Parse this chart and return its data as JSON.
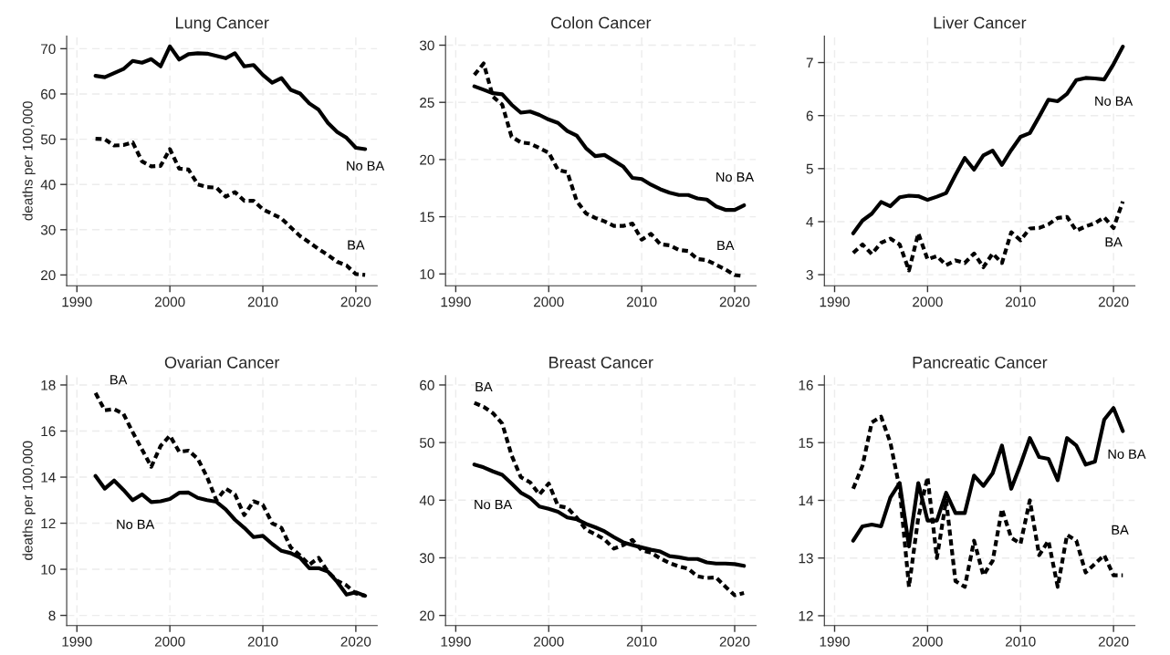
{
  "chart_data": [
    {
      "type": "line",
      "title": "Lung Cancer",
      "ylabel": "deaths per 100,000",
      "xlim": [
        1988.9,
        2022.3
      ],
      "xticks": [
        1990,
        2000,
        2010,
        2020
      ],
      "ylim": [
        17.6,
        72.8
      ],
      "yticks": [
        20,
        30,
        40,
        50,
        60,
        70
      ],
      "grid": true,
      "legend": false,
      "x": [
        1992,
        1993,
        1994,
        1995,
        1996,
        1997,
        1998,
        1999,
        2000,
        2001,
        2002,
        2003,
        2004,
        2005,
        2006,
        2007,
        2008,
        2009,
        2010,
        2011,
        2012,
        2013,
        2014,
        2015,
        2016,
        2017,
        2018,
        2019,
        2020,
        2021
      ],
      "series": [
        {
          "name": "No BA",
          "color": "#000000",
          "line_style": "solid",
          "values": [
            64.0,
            63.7,
            64.6,
            65.5,
            67.3,
            66.9,
            67.7,
            66.1,
            70.5,
            67.6,
            68.8,
            69.0,
            68.9,
            68.4,
            67.9,
            69.0,
            66.1,
            66.4,
            64.2,
            62.5,
            63.5,
            60.9,
            60.1,
            57.9,
            56.5,
            53.6,
            51.6,
            50.3,
            48.1,
            47.8
          ]
        },
        {
          "name": "BA",
          "color": "#000000",
          "line_style": "dashed",
          "values": [
            50.1,
            50.0,
            48.6,
            48.7,
            49.3,
            45.1,
            44.0,
            44.1,
            47.8,
            43.5,
            43.3,
            40.0,
            39.4,
            39.3,
            37.3,
            38.3,
            36.4,
            36.4,
            34.5,
            33.5,
            32.5,
            30.5,
            28.6,
            27.2,
            25.7,
            24.4,
            22.9,
            22.1,
            20.2,
            20.0
          ]
        }
      ]
    },
    {
      "type": "line",
      "title": "Colon Cancer",
      "xlim": [
        1988.9,
        2022.3
      ],
      "xticks": [
        1990,
        2000,
        2010,
        2020
      ],
      "ylim": [
        8.96,
        30.8
      ],
      "yticks": [
        10,
        15,
        20,
        25,
        30
      ],
      "grid": true,
      "legend": false,
      "x": [
        1992,
        1993,
        1994,
        1995,
        1996,
        1997,
        1998,
        1999,
        2000,
        2001,
        2002,
        2003,
        2004,
        2005,
        2006,
        2007,
        2008,
        2009,
        2010,
        2011,
        2012,
        2013,
        2014,
        2015,
        2016,
        2017,
        2018,
        2019,
        2020,
        2021
      ],
      "series": [
        {
          "name": "No BA",
          "color": "#000000",
          "line_style": "solid",
          "values": [
            26.4,
            26.1,
            25.8,
            25.7,
            24.8,
            24.1,
            24.2,
            23.9,
            23.5,
            23.2,
            22.5,
            22.1,
            21.0,
            20.3,
            20.4,
            19.9,
            19.4,
            18.4,
            18.3,
            17.8,
            17.4,
            17.1,
            16.9,
            16.9,
            16.6,
            16.5,
            15.9,
            15.6,
            15.6,
            16.0
          ]
        },
        {
          "name": "BA",
          "color": "#000000",
          "line_style": "dashed",
          "values": [
            27.4,
            28.4,
            25.5,
            24.8,
            22.0,
            21.5,
            21.4,
            21.0,
            20.6,
            19.1,
            18.9,
            16.4,
            15.3,
            14.9,
            14.6,
            14.2,
            14.2,
            14.4,
            13.0,
            13.5,
            12.6,
            12.5,
            12.1,
            12.0,
            11.3,
            11.2,
            10.8,
            10.4,
            9.9,
            9.8
          ]
        }
      ]
    },
    {
      "type": "line",
      "title": "Liver Cancer",
      "xlim": [
        1988.9,
        2022.3
      ],
      "xticks": [
        1990,
        2000,
        2010,
        2020
      ],
      "ylim": [
        2.79,
        7.5
      ],
      "yticks": [
        3,
        4,
        5,
        6,
        7
      ],
      "grid": true,
      "legend": false,
      "x": [
        1992,
        1993,
        1994,
        1995,
        1996,
        1997,
        1998,
        1999,
        2000,
        2001,
        2002,
        2003,
        2004,
        2005,
        2006,
        2007,
        2008,
        2009,
        2010,
        2011,
        2012,
        2013,
        2014,
        2015,
        2016,
        2017,
        2018,
        2019,
        2020,
        2021
      ],
      "series": [
        {
          "name": "No BA",
          "color": "#000000",
          "line_style": "solid",
          "values": [
            3.78,
            4.02,
            4.15,
            4.37,
            4.29,
            4.46,
            4.49,
            4.48,
            4.41,
            4.47,
            4.54,
            4.88,
            5.2,
            4.98,
            5.25,
            5.34,
            5.07,
            5.35,
            5.6,
            5.67,
            5.98,
            6.3,
            6.27,
            6.41,
            6.67,
            6.71,
            6.7,
            6.68,
            6.97,
            7.3
          ]
        },
        {
          "name": "BA",
          "color": "#000000",
          "line_style": "dashed",
          "values": [
            3.41,
            3.57,
            3.39,
            3.6,
            3.68,
            3.57,
            3.08,
            3.78,
            3.29,
            3.35,
            3.18,
            3.27,
            3.22,
            3.4,
            3.14,
            3.4,
            3.22,
            3.8,
            3.65,
            3.87,
            3.88,
            3.95,
            4.07,
            4.09,
            3.83,
            3.91,
            3.97,
            4.08,
            3.88,
            4.38
          ]
        }
      ]
    },
    {
      "type": "line",
      "title": "Ovarian Cancer",
      "ylabel": "deaths per 100,000",
      "xlim": [
        1988.9,
        2022.3
      ],
      "xticks": [
        1990,
        2000,
        2010,
        2020
      ],
      "ylim": [
        7.56,
        18.4
      ],
      "yticks": [
        8,
        10,
        12,
        14,
        16,
        18
      ],
      "grid": true,
      "legend": false,
      "x": [
        1992,
        1993,
        1994,
        1995,
        1996,
        1997,
        1998,
        1999,
        2000,
        2001,
        2002,
        2003,
        2004,
        2005,
        2006,
        2007,
        2008,
        2009,
        2010,
        2011,
        2012,
        2013,
        2014,
        2015,
        2016,
        2017,
        2018,
        2019,
        2020,
        2021
      ],
      "series": [
        {
          "name": "No BA",
          "color": "#000000",
          "line_style": "solid",
          "values": [
            14.05,
            13.5,
            13.85,
            13.45,
            13.0,
            13.25,
            12.92,
            12.95,
            13.05,
            13.32,
            13.33,
            13.1,
            13.0,
            12.93,
            12.6,
            12.15,
            11.8,
            11.4,
            11.45,
            11.1,
            10.8,
            10.7,
            10.5,
            10.05,
            10.05,
            9.9,
            9.45,
            8.9,
            9.0,
            8.85
          ]
        },
        {
          "name": "BA",
          "color": "#000000",
          "line_style": "dashed",
          "values": [
            17.65,
            16.9,
            16.95,
            16.75,
            15.95,
            15.2,
            14.45,
            15.35,
            15.8,
            15.1,
            15.15,
            14.8,
            14.0,
            13.0,
            13.5,
            13.25,
            12.35,
            12.95,
            12.8,
            12.0,
            11.8,
            10.95,
            10.6,
            10.2,
            10.5,
            9.9,
            9.5,
            9.3,
            8.95,
            8.85
          ]
        }
      ]
    },
    {
      "type": "line",
      "title": "Breast Cancer",
      "xlim": [
        1988.9,
        2022.3
      ],
      "xticks": [
        1990,
        2000,
        2010,
        2020
      ],
      "ylim": [
        18.25,
        61.6
      ],
      "yticks": [
        20,
        30,
        40,
        50,
        60
      ],
      "grid": true,
      "legend": false,
      "x": [
        1992,
        1993,
        1994,
        1995,
        1996,
        1997,
        1998,
        1999,
        2000,
        2001,
        2002,
        2003,
        2004,
        2005,
        2006,
        2007,
        2008,
        2009,
        2010,
        2011,
        2012,
        2013,
        2014,
        2015,
        2016,
        2017,
        2018,
        2019,
        2020,
        2021
      ],
      "series": [
        {
          "name": "No BA",
          "color": "#000000",
          "line_style": "solid",
          "values": [
            46.2,
            45.7,
            45.0,
            44.4,
            42.9,
            41.3,
            40.4,
            38.9,
            38.5,
            38.0,
            37.0,
            36.7,
            35.9,
            35.3,
            34.6,
            33.6,
            32.7,
            32.2,
            31.8,
            31.4,
            31.1,
            30.3,
            30.1,
            29.8,
            29.8,
            29.2,
            29.0,
            29.0,
            28.9,
            28.6
          ]
        },
        {
          "name": "BA",
          "color": "#000000",
          "line_style": "dashed",
          "values": [
            56.9,
            56.2,
            55.1,
            53.3,
            47.8,
            44.0,
            43.1,
            41.0,
            42.9,
            39.0,
            38.7,
            37.0,
            34.9,
            34.1,
            33.2,
            31.6,
            32.2,
            33.1,
            31.3,
            30.9,
            29.9,
            29.1,
            28.5,
            28.1,
            26.8,
            26.5,
            26.6,
            25.0,
            23.5,
            23.9
          ]
        }
      ]
    },
    {
      "type": "line",
      "title": "Pancreatic Cancer",
      "xlim": [
        1988.9,
        2022.3
      ],
      "xticks": [
        1990,
        2000,
        2010,
        2020
      ],
      "ylim": [
        11.83,
        16.16
      ],
      "yticks": [
        12,
        13,
        14,
        15,
        16
      ],
      "grid": true,
      "legend": false,
      "x": [
        1992,
        1993,
        1994,
        1995,
        1996,
        1997,
        1998,
        1999,
        2000,
        2001,
        2002,
        2003,
        2004,
        2005,
        2006,
        2007,
        2008,
        2009,
        2010,
        2011,
        2012,
        2013,
        2014,
        2015,
        2016,
        2017,
        2018,
        2019,
        2020,
        2021
      ],
      "series": [
        {
          "name": "No BA",
          "color": "#000000",
          "line_style": "solid",
          "values": [
            13.3,
            13.55,
            13.58,
            13.55,
            14.05,
            14.3,
            13.2,
            14.3,
            13.65,
            13.65,
            14.13,
            13.78,
            13.78,
            14.43,
            14.25,
            14.47,
            14.95,
            14.2,
            14.62,
            15.08,
            14.75,
            14.72,
            14.35,
            15.08,
            14.95,
            14.62,
            14.67,
            15.4,
            15.6,
            15.2
          ]
        },
        {
          "name": "BA",
          "color": "#000000",
          "line_style": "dashed",
          "values": [
            14.2,
            14.6,
            15.35,
            15.45,
            15.0,
            14.2,
            12.5,
            13.7,
            14.4,
            13.0,
            14.0,
            12.6,
            12.5,
            13.3,
            12.7,
            12.95,
            13.85,
            13.35,
            13.25,
            14.0,
            13.05,
            13.3,
            12.5,
            13.4,
            13.3,
            12.75,
            12.9,
            13.05,
            12.7,
            12.7
          ]
        }
      ]
    }
  ]
}
